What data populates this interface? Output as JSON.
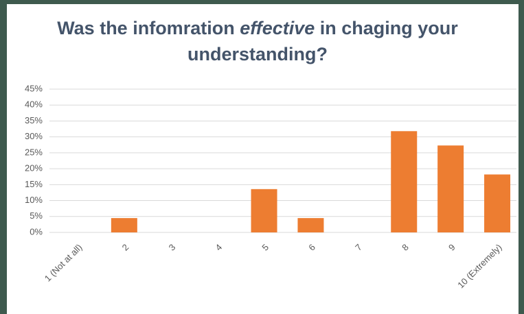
{
  "chart_data": {
    "type": "bar",
    "title": [
      "Was the infomration ",
      "effective",
      " in chaging your understanding?"
    ],
    "title_emphasis": 1,
    "categories": [
      "1 (Not at all)",
      "2",
      "3",
      "4",
      "5",
      "6",
      "7",
      "8",
      "9",
      "10 (Extremely)"
    ],
    "values": [
      0,
      4.5,
      0,
      0,
      13.6,
      4.5,
      0,
      31.8,
      27.3,
      18.2
    ],
    "color": "#ed7d31",
    "ylim": [
      0,
      45
    ],
    "yticks": [
      {
        "value": 0,
        "label": "0%"
      },
      {
        "value": 5,
        "label": "5%"
      },
      {
        "value": 10,
        "label": "10%"
      },
      {
        "value": 15,
        "label": "15%"
      },
      {
        "value": 20,
        "label": "20%"
      },
      {
        "value": 25,
        "label": "25%"
      },
      {
        "value": 30,
        "label": "30%"
      },
      {
        "value": 35,
        "label": "35%"
      },
      {
        "value": 40,
        "label": "40%"
      },
      {
        "value": 45,
        "label": "45%"
      }
    ],
    "grid": true
  }
}
